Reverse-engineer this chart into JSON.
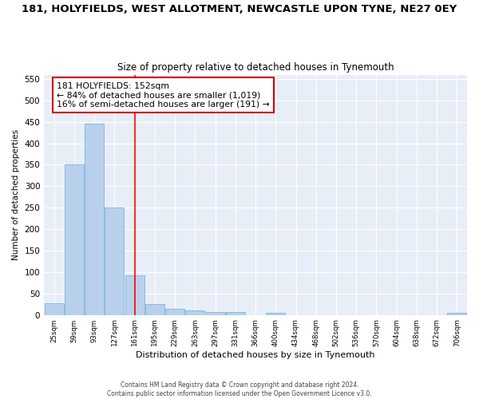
{
  "title": "181, HOLYFIELDS, WEST ALLOTMENT, NEWCASTLE UPON TYNE, NE27 0EY",
  "subtitle": "Size of property relative to detached houses in Tynemouth",
  "xlabel": "Distribution of detached houses by size in Tynemouth",
  "ylabel": "Number of detached properties",
  "bar_values": [
    28,
    350,
    445,
    250,
    93,
    25,
    14,
    11,
    6,
    6,
    0,
    5,
    0,
    0,
    0,
    0,
    0,
    0,
    0,
    0,
    5
  ],
  "categories": [
    "25sqm",
    "59sqm",
    "93sqm",
    "127sqm",
    "161sqm",
    "195sqm",
    "229sqm",
    "263sqm",
    "297sqm",
    "331sqm",
    "366sqm",
    "400sqm",
    "434sqm",
    "468sqm",
    "502sqm",
    "536sqm",
    "570sqm",
    "604sqm",
    "638sqm",
    "672sqm",
    "706sqm"
  ],
  "bar_color": "#b8d0eb",
  "bar_edge_color": "#6aaed6",
  "ref_line_x": 4.0,
  "annotation_line1": "181 HOLYFIELDS: 152sqm",
  "annotation_line2": "← 84% of detached houses are smaller (1,019)",
  "annotation_line3": "16% of semi-detached houses are larger (191) →",
  "annotation_box_color": "#ffffff",
  "annotation_box_edge": "#cc0000",
  "ylim": [
    0,
    560
  ],
  "yticks": [
    0,
    50,
    100,
    150,
    200,
    250,
    300,
    350,
    400,
    450,
    500,
    550
  ],
  "background_color": "#e8eef7",
  "grid_color": "#ffffff",
  "footer_line1": "Contains HM Land Registry data © Crown copyright and database right 2024.",
  "footer_line2": "Contains public sector information licensed under the Open Government Licence v3.0."
}
